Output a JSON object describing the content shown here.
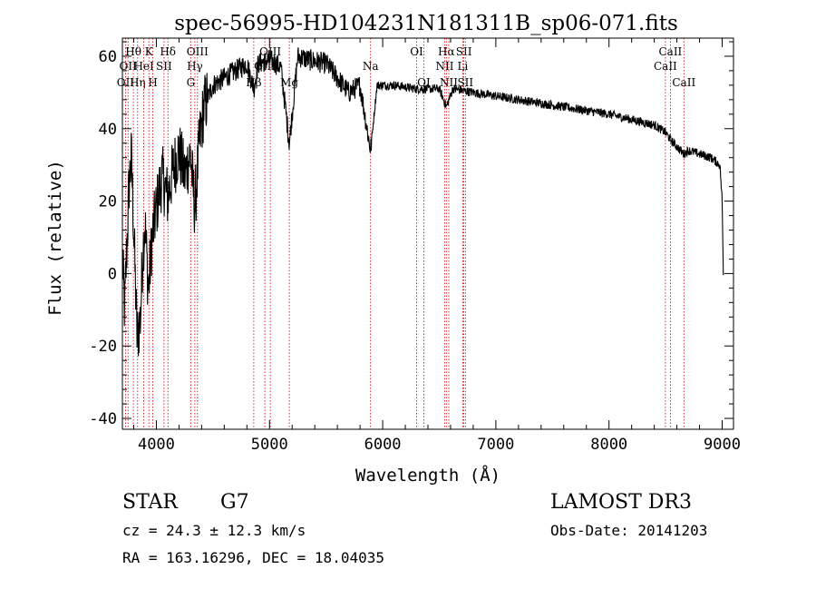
{
  "chart_data": {
    "type": "line",
    "title": "spec-56995-HD104231N181311B_sp06-071.fits",
    "xlabel": "Wavelength (Å)",
    "ylabel": "Flux (relative)",
    "xlim": [
      3700,
      9100
    ],
    "ylim": [
      -43,
      65
    ],
    "xticks": [
      4000,
      5000,
      6000,
      7000,
      8000,
      9000
    ],
    "xtick_labels": [
      "4000",
      "5000",
      "6000",
      "7000",
      "8000",
      "9000"
    ],
    "yticks": [
      -40,
      -20,
      0,
      20,
      40,
      60
    ],
    "ytick_labels": [
      "-40",
      "-20",
      "0",
      "20",
      "40",
      "60"
    ],
    "spectrum_anchors": [
      [
        3700,
        4
      ],
      [
        3720,
        -10
      ],
      [
        3740,
        8
      ],
      [
        3760,
        25
      ],
      [
        3780,
        32
      ],
      [
        3800,
        12
      ],
      [
        3830,
        -18
      ],
      [
        3860,
        -12
      ],
      [
        3880,
        6
      ],
      [
        3900,
        14
      ],
      [
        3930,
        -5
      ],
      [
        3960,
        9
      ],
      [
        4000,
        18
      ],
      [
        4050,
        27
      ],
      [
        4100,
        21
      ],
      [
        4150,
        29
      ],
      [
        4200,
        34
      ],
      [
        4250,
        27
      ],
      [
        4300,
        33
      ],
      [
        4340,
        18
      ],
      [
        4380,
        36
      ],
      [
        4420,
        46
      ],
      [
        4500,
        52
      ],
      [
        4600,
        54
      ],
      [
        4700,
        56
      ],
      [
        4800,
        58
      ],
      [
        4861,
        51
      ],
      [
        4900,
        58
      ],
      [
        5000,
        59
      ],
      [
        5100,
        57
      ],
      [
        5175,
        36
      ],
      [
        5250,
        60
      ],
      [
        5350,
        59
      ],
      [
        5500,
        58
      ],
      [
        5600,
        54
      ],
      [
        5700,
        50
      ],
      [
        5800,
        52
      ],
      [
        5893,
        34
      ],
      [
        5950,
        52
      ],
      [
        6100,
        52
      ],
      [
        6300,
        51
      ],
      [
        6500,
        51
      ],
      [
        6563,
        46
      ],
      [
        6620,
        51
      ],
      [
        6800,
        50
      ],
      [
        7000,
        49
      ],
      [
        7200,
        48
      ],
      [
        7400,
        47
      ],
      [
        7600,
        46
      ],
      [
        7800,
        45
      ],
      [
        8000,
        44
      ],
      [
        8200,
        42.5
      ],
      [
        8400,
        41
      ],
      [
        8498,
        39
      ],
      [
        8542,
        37
      ],
      [
        8600,
        35
      ],
      [
        8662,
        33
      ],
      [
        8700,
        34
      ],
      [
        8800,
        33
      ],
      [
        8900,
        32
      ],
      [
        8980,
        30
      ],
      [
        9000,
        20
      ],
      [
        9010,
        0
      ]
    ],
    "line_markers": [
      {
        "x": 3727,
        "label": "OII",
        "row": 2
      },
      {
        "x": 3750,
        "label": "OII",
        "row": 1
      },
      {
        "x": 3797,
        "label": "Hθ",
        "row": 0
      },
      {
        "x": 3835,
        "label": "Hη",
        "row": 2
      },
      {
        "x": 3889,
        "label": "HeI",
        "row": 1
      },
      {
        "x": 3934,
        "label": "K",
        "row": 0
      },
      {
        "x": 3969,
        "label": "H",
        "row": 2
      },
      {
        "x": 4068,
        "label": "SII",
        "row": 1
      },
      {
        "x": 4102,
        "label": "Hδ",
        "row": 0
      },
      {
        "x": 4304,
        "label": "G",
        "row": 2
      },
      {
        "x": 4340,
        "label": "Hγ",
        "row": 1
      },
      {
        "x": 4363,
        "label": "OIII",
        "row": 0
      },
      {
        "x": 4861,
        "label": "Hβ",
        "row": 2
      },
      {
        "x": 4959,
        "label": "OIII",
        "row": 1
      },
      {
        "x": 5007,
        "label": "OIII",
        "row": 0
      },
      {
        "x": 5175,
        "label": "Mg",
        "row": 2
      },
      {
        "x": 5893,
        "label": "Na",
        "row": 1
      },
      {
        "x": 6300,
        "label": "OI",
        "row": 0
      },
      {
        "x": 6363,
        "label": "OI",
        "row": 2
      },
      {
        "x": 6548,
        "label": "NII",
        "row": 1
      },
      {
        "x": 6563,
        "label": "Hα",
        "row": 0
      },
      {
        "x": 6584,
        "label": "NII",
        "row": 2
      },
      {
        "x": 6708,
        "label": "Li",
        "row": 1
      },
      {
        "x": 6717,
        "label": "SII",
        "row": 0
      },
      {
        "x": 6731,
        "label": "SII",
        "row": 2
      },
      {
        "x": 8498,
        "label": "CaII",
        "row": 1
      },
      {
        "x": 8542,
        "label": "CaII",
        "row": 0
      },
      {
        "x": 8662,
        "label": "CaII",
        "row": 2
      }
    ]
  },
  "info": {
    "object_class": "STAR",
    "subclass": "G7",
    "redshift": "cz = 24.3 ± 12.3 km/s",
    "coords": "RA = 163.16296, DEC =  18.04035",
    "survey": "LAMOST DR3",
    "obs_date": "Obs-Date: 20141203"
  },
  "colors": {
    "line_marker": "#cc0000",
    "spectrum": "#000000",
    "axes": "#000000"
  }
}
